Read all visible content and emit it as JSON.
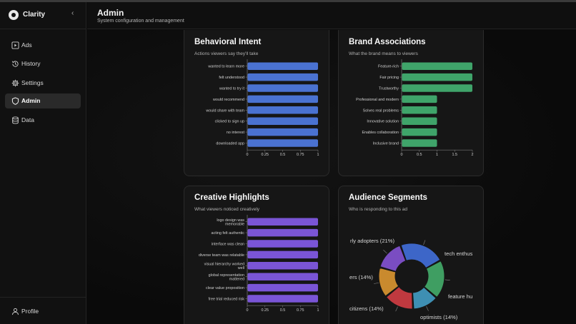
{
  "app": {
    "name": "Clarity",
    "collapse_icon": "chevron-left-icon"
  },
  "nav": {
    "items": [
      {
        "label": "Ads",
        "icon": "play-square-icon",
        "active": false
      },
      {
        "label": "History",
        "icon": "history-icon",
        "active": false
      },
      {
        "label": "Settings",
        "icon": "gear-icon",
        "active": false
      },
      {
        "label": "Admin",
        "icon": "shield-icon",
        "active": true
      },
      {
        "label": "Data",
        "icon": "database-icon",
        "active": false
      }
    ],
    "profile": {
      "label": "Profile",
      "icon": "user-icon"
    }
  },
  "header": {
    "title": "Admin",
    "subtitle": "System configuration and management"
  },
  "colors": {
    "blue": "#4a72d1",
    "green": "#3fa46a",
    "purple": "#7a55d6",
    "donut": [
      "#3d66c8",
      "#3f9e62",
      "#3e8fb3",
      "#c0393f",
      "#c98a2e",
      "#7a4dc2"
    ]
  },
  "cards": {
    "behavioral": {
      "title": "Behavioral Intent",
      "subtitle": "Actions viewers say they'll take"
    },
    "brand": {
      "title": "Brand Associations",
      "subtitle": "What the brand means to viewers"
    },
    "creative": {
      "title": "Creative Highlights",
      "subtitle": "What viewers noticed creatively"
    },
    "audience": {
      "title": "Audience Segments",
      "subtitle": "Who is responding to this ad"
    }
  },
  "chart_data": [
    {
      "id": "behavioral",
      "type": "bar",
      "orientation": "horizontal",
      "categories": [
        "wanted to learn more",
        "felt understood",
        "wanted to try it",
        "would recommend",
        "would share with team",
        "clicked to sign up",
        "no interest",
        "downloaded app"
      ],
      "values": [
        1,
        1,
        1,
        1,
        1,
        1,
        1,
        1
      ],
      "xlim": [
        0,
        1
      ],
      "xticks": [
        "0",
        "0.25",
        "0.5",
        "0.75",
        "1"
      ],
      "xtick_values": [
        0,
        0.25,
        0.5,
        0.75,
        1
      ]
    },
    {
      "id": "brand",
      "type": "bar",
      "orientation": "horizontal",
      "categories": [
        "Feature-rich",
        "Fair pricing",
        "Trustworthy",
        "Professional and modern",
        "Solves real problems",
        "Innovative solution",
        "Enables collaboration",
        "Inclusive brand"
      ],
      "values": [
        2,
        2,
        2,
        1,
        1,
        1,
        1,
        1
      ],
      "xlim": [
        0,
        2
      ],
      "xticks": [
        "0",
        "0.5",
        "1",
        "1.5",
        "2"
      ],
      "xtick_values": [
        0,
        0.5,
        1,
        1.5,
        2
      ]
    },
    {
      "id": "creative",
      "type": "bar",
      "orientation": "horizontal",
      "categories": [
        [
          "logo design was",
          "memorable"
        ],
        [
          "acting felt authentic"
        ],
        [
          "interface was clean"
        ],
        [
          "diverse team was relatable"
        ],
        [
          "visual hierarchy worked",
          "well"
        ],
        [
          "global representation",
          "mattered"
        ],
        [
          "clear value proposition"
        ],
        [
          "free trial reduced risk"
        ]
      ],
      "values": [
        1,
        1,
        1,
        1,
        1,
        1,
        1,
        1
      ],
      "xlim": [
        0,
        1
      ],
      "xticks": [
        "0",
        "0.25",
        "0.5",
        "0.75",
        "1"
      ],
      "xtick_values": [
        0,
        0.25,
        0.5,
        0.75,
        1
      ]
    },
    {
      "id": "audience",
      "type": "pie",
      "donut": true,
      "labels": [
        "rly adopters (21%)",
        "tech enthus",
        "feature hu",
        "optimists (14%)",
        "citizens (14%)",
        "ers (14%)"
      ],
      "values": [
        21,
        18,
        12,
        14,
        14,
        14
      ]
    }
  ]
}
